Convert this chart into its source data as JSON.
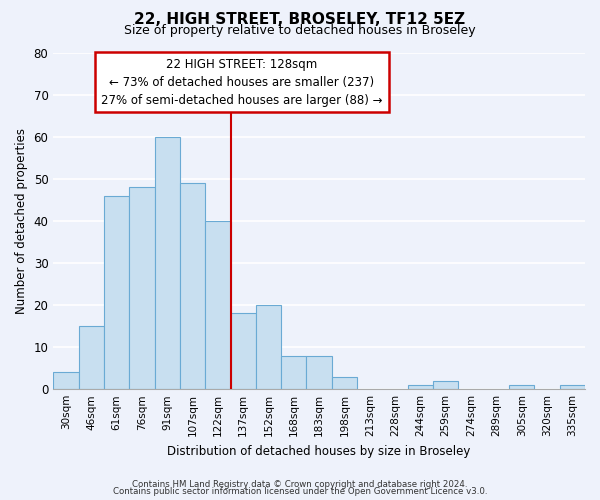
{
  "title": "22, HIGH STREET, BROSELEY, TF12 5EZ",
  "subtitle": "Size of property relative to detached houses in Broseley",
  "xlabel": "Distribution of detached houses by size in Broseley",
  "ylabel": "Number of detached properties",
  "bar_color": "#c8dff0",
  "bar_edge_color": "#6aaad4",
  "background_color": "#eef2fb",
  "grid_color": "white",
  "categories": [
    "30sqm",
    "46sqm",
    "61sqm",
    "76sqm",
    "91sqm",
    "107sqm",
    "122sqm",
    "137sqm",
    "152sqm",
    "168sqm",
    "183sqm",
    "198sqm",
    "213sqm",
    "228sqm",
    "244sqm",
    "259sqm",
    "274sqm",
    "289sqm",
    "305sqm",
    "320sqm",
    "335sqm"
  ],
  "values": [
    4,
    15,
    46,
    48,
    60,
    49,
    40,
    18,
    20,
    8,
    8,
    3,
    0,
    0,
    1,
    2,
    0,
    0,
    1,
    0,
    1
  ],
  "ylim": [
    0,
    80
  ],
  "yticks": [
    0,
    10,
    20,
    30,
    40,
    50,
    60,
    70,
    80
  ],
  "property_line_idx": 6.5,
  "property_label": "22 HIGH STREET: 128sqm",
  "annotation_line1": "← 73% of detached houses are smaller (237)",
  "annotation_line2": "27% of semi-detached houses are larger (88) →",
  "annotation_box_color": "white",
  "annotation_box_edge": "#cc0000",
  "property_line_color": "#cc0000",
  "footer_line1": "Contains HM Land Registry data © Crown copyright and database right 2024.",
  "footer_line2": "Contains public sector information licensed under the Open Government Licence v3.0."
}
